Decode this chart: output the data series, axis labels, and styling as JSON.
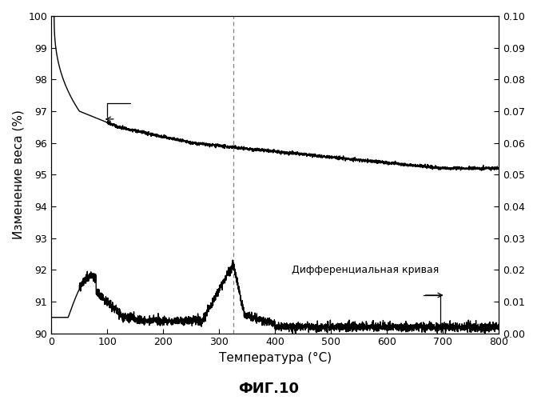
{
  "title": "ФИГ.10",
  "xlabel": "Температура (°C)",
  "ylabel_left": "Изменение веса (%)",
  "xlim": [
    0,
    800
  ],
  "ylim_left": [
    90,
    100
  ],
  "ylim_right": [
    0.0,
    0.1
  ],
  "xticks": [
    0,
    100,
    200,
    300,
    400,
    500,
    600,
    700,
    800
  ],
  "yticks_left": [
    90,
    91,
    92,
    93,
    94,
    95,
    96,
    97,
    98,
    99,
    100
  ],
  "yticks_right": [
    0.0,
    0.01,
    0.02,
    0.03,
    0.04,
    0.05,
    0.06,
    0.07,
    0.08,
    0.09,
    0.1
  ],
  "dashed_line_x": 325,
  "annotation_text": "Дифференциальная кривая",
  "background_color": "#ffffff",
  "line_color": "#000000"
}
